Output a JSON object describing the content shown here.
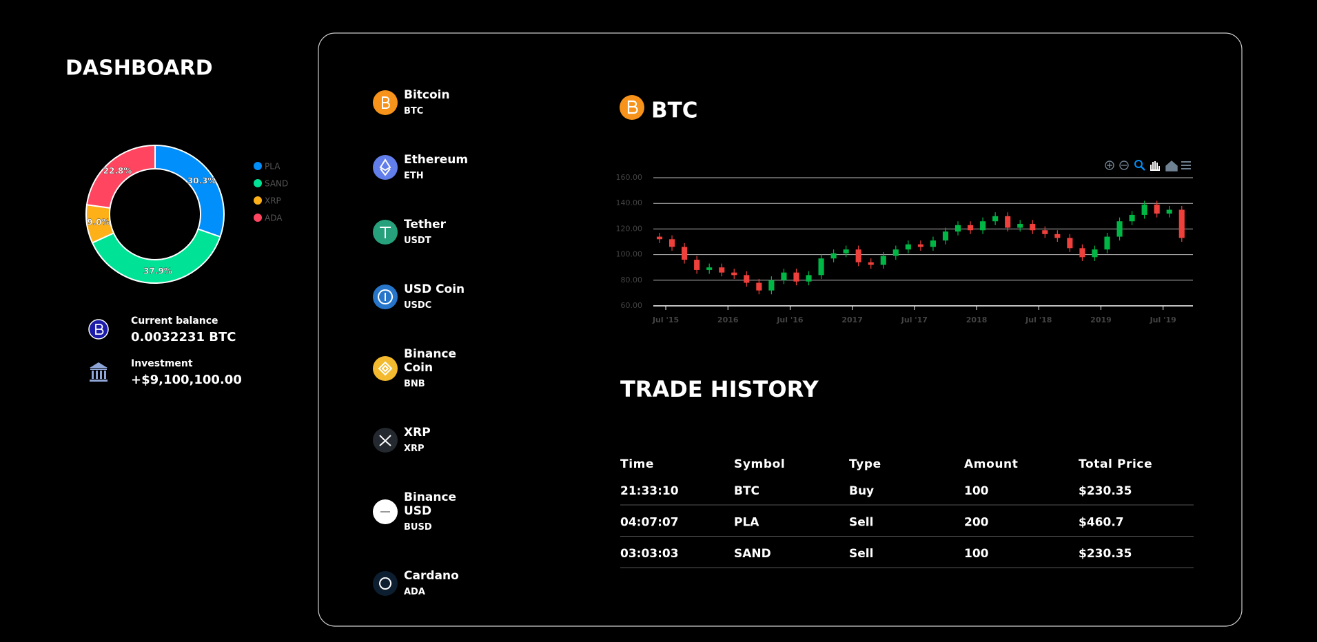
{
  "sidebar": {
    "title": "DASHBOARD",
    "balance": {
      "label": "Current balance",
      "value": "0.0032231 BTC"
    },
    "investment": {
      "label": "Investment",
      "value": "+$9,100,100.00"
    }
  },
  "chart_data": [
    {
      "type": "donut",
      "categories": [
        "PLA",
        "SAND",
        "XRP",
        "ADA"
      ],
      "values": [
        30.3,
        37.9,
        9.0,
        22.8
      ],
      "value_labels": [
        "30.3%",
        "37.9%",
        "9.0%",
        "22.8%"
      ],
      "colors": [
        "#008ffb",
        "#00e396",
        "#feb019",
        "#ff4560"
      ],
      "legend": "right"
    },
    {
      "type": "candlestick",
      "title": "BTC",
      "x": [
        2015.45,
        2015.55,
        2015.65,
        2015.75,
        2015.85,
        2015.95,
        2016.05,
        2016.15,
        2016.25,
        2016.35,
        2016.45,
        2016.55,
        2016.65,
        2016.75,
        2016.85,
        2016.95,
        2017.05,
        2017.15,
        2017.25,
        2017.35,
        2017.45,
        2017.55,
        2017.65,
        2017.75,
        2017.85,
        2017.95,
        2018.05,
        2018.15,
        2018.25,
        2018.35,
        2018.45,
        2018.55,
        2018.65,
        2018.75,
        2018.85,
        2018.95,
        2019.05,
        2019.15,
        2019.25,
        2019.35,
        2019.45,
        2019.55,
        2019.65
      ],
      "open": [
        114,
        112,
        106,
        96,
        88,
        90,
        86,
        84,
        78,
        72,
        80,
        86,
        79,
        84,
        97,
        101,
        104,
        94,
        92,
        99,
        104,
        108,
        106,
        111,
        118,
        123,
        119,
        126,
        130,
        121,
        124,
        119,
        116,
        113,
        105,
        98,
        104,
        114,
        126,
        131,
        139,
        132,
        135
      ],
      "high": [
        117,
        115,
        109,
        99,
        93,
        93,
        89,
        87,
        81,
        83,
        89,
        89,
        87,
        100,
        104,
        107,
        107,
        97,
        102,
        107,
        111,
        111,
        114,
        121,
        126,
        126,
        129,
        133,
        133,
        127,
        127,
        122,
        119,
        116,
        108,
        107,
        117,
        129,
        134,
        142,
        142,
        138,
        138
      ],
      "low": [
        109,
        103,
        93,
        85,
        85,
        83,
        81,
        75,
        69,
        69,
        77,
        76,
        76,
        81,
        94,
        98,
        91,
        89,
        89,
        96,
        101,
        103,
        103,
        108,
        115,
        116,
        116,
        123,
        118,
        118,
        116,
        113,
        110,
        102,
        95,
        95,
        101,
        111,
        123,
        128,
        129,
        129,
        110
      ],
      "close": [
        112,
        106,
        96,
        88,
        90,
        86,
        84,
        78,
        72,
        80,
        86,
        79,
        84,
        97,
        101,
        104,
        94,
        92,
        99,
        104,
        108,
        106,
        111,
        118,
        123,
        119,
        126,
        130,
        121,
        124,
        119,
        116,
        113,
        105,
        98,
        104,
        114,
        126,
        131,
        139,
        132,
        135,
        113
      ],
      "up_color": "#00b746",
      "down_color": "#ef403c",
      "xlim": [
        2015.4,
        2019.74
      ],
      "xticks": [
        {
          "value": 2015.5,
          "label": "Jul '15"
        },
        2016,
        {
          "value": 2016.5,
          "label": "Jul '16"
        },
        2017,
        {
          "value": 2017.5,
          "label": "Jul '17"
        },
        2018,
        {
          "value": 2018.5,
          "label": "Jul '18"
        },
        2019,
        {
          "value": 2019.5,
          "label": "Jul '19"
        }
      ],
      "ylim": [
        60,
        160
      ],
      "yticks": [
        {
          "value": 60,
          "label": "60.00"
        },
        {
          "value": 80,
          "label": "80.00"
        },
        {
          "value": 100,
          "label": "100.00"
        },
        {
          "value": 120,
          "label": "120.00"
        },
        {
          "value": 140,
          "label": "140.00"
        },
        {
          "value": 160,
          "label": "160.00"
        }
      ],
      "grid": true
    }
  ],
  "coins": [
    {
      "name": "Bitcoin",
      "symbol": "BTC"
    },
    {
      "name": "Ethereum",
      "symbol": "ETH"
    },
    {
      "name": "Tether",
      "symbol": "USDT"
    },
    {
      "name": "USD Coin",
      "symbol": "USDC"
    },
    {
      "name": "Binance Coin",
      "symbol": "BNB"
    },
    {
      "name": "XRP",
      "symbol": "XRP"
    },
    {
      "name": "Binance USD",
      "symbol": "BUSD"
    },
    {
      "name": "Cardano",
      "symbol": "ADA"
    }
  ],
  "trade_history": {
    "title": "TRADE HISTORY",
    "columns": [
      "Time",
      "Symbol",
      "Type",
      "Amount",
      "Total Price"
    ],
    "rows": [
      [
        "21:33:10",
        "BTC",
        "Buy",
        "100",
        "$230.35"
      ],
      [
        "04:07:07",
        "PLA",
        "Sell",
        "200",
        "$460.7"
      ],
      [
        "03:03:03",
        "SAND",
        "Sell",
        "100",
        "$230.35"
      ]
    ]
  }
}
